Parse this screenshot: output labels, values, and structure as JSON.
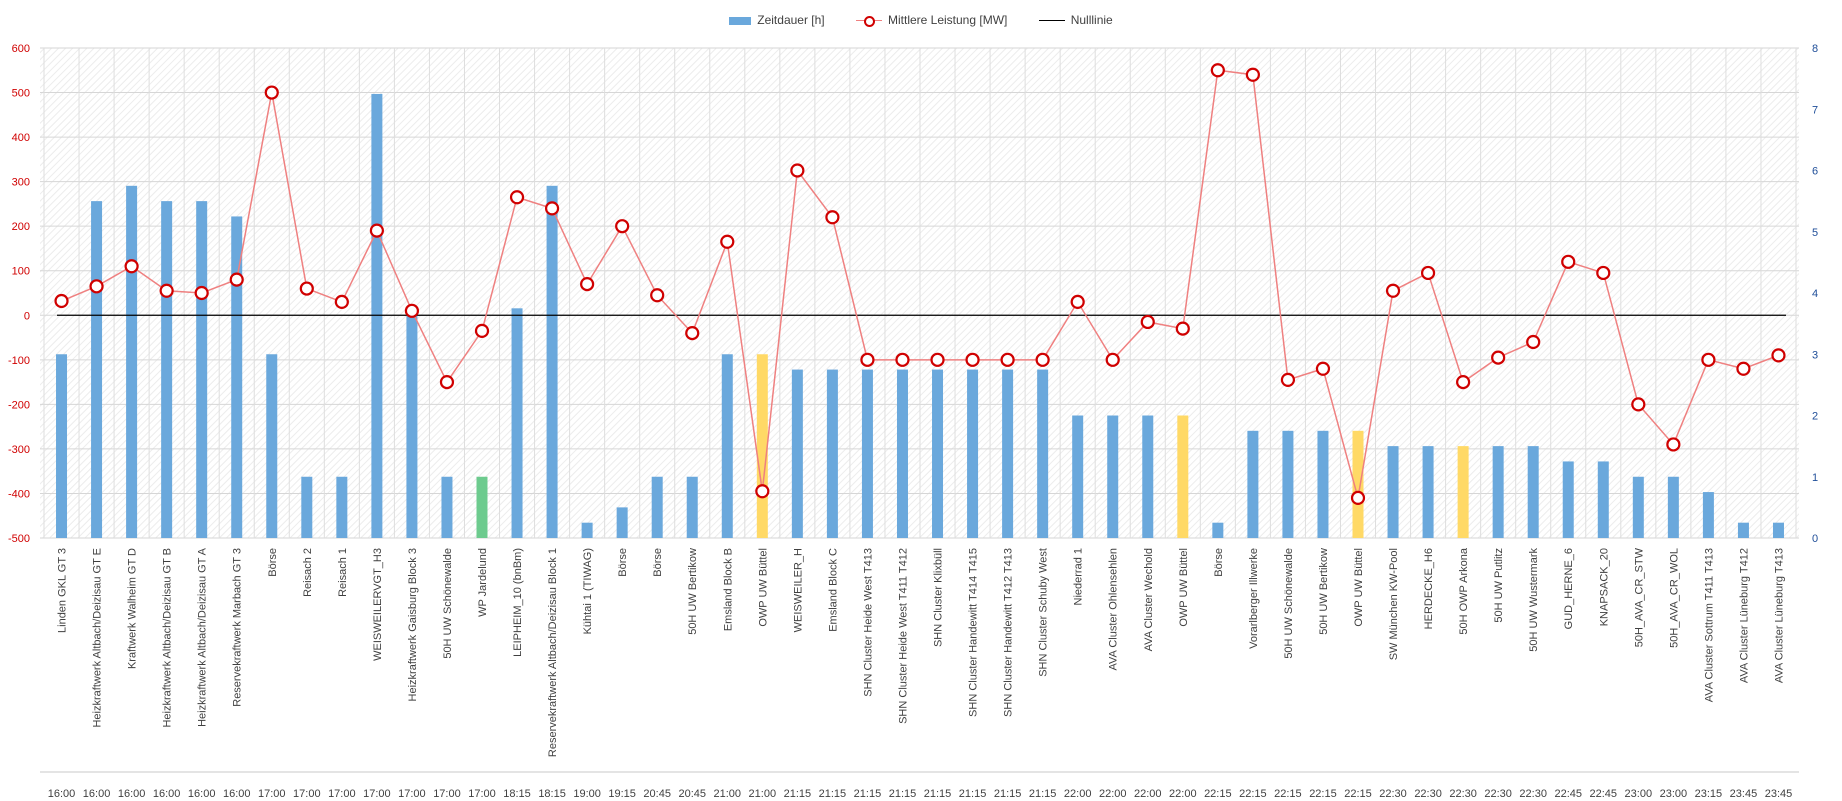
{
  "chart_data": {
    "type": "bar+line",
    "legend": [
      {
        "label": "Zeitdauer [h]",
        "kind": "bar",
        "color": "#6aa8dc"
      },
      {
        "label": "Mittlere Leistung [MW]",
        "kind": "line",
        "color": "#ef8080"
      },
      {
        "label": "Nulllinie",
        "kind": "line",
        "color": "#000000"
      }
    ],
    "y_left": {
      "min": -500,
      "max": 600,
      "ticks": [
        600,
        500,
        400,
        300,
        200,
        100,
        0,
        -100,
        -200,
        -300,
        -400,
        -500
      ],
      "color": "#d00000"
    },
    "y_right": {
      "min": 0,
      "max": 8,
      "ticks": [
        8,
        7,
        6,
        5,
        4,
        3,
        2,
        1,
        0
      ],
      "color": "#1f4e99"
    },
    "categories": [
      {
        "label": "Linden GKL GT 3",
        "time": "16:00"
      },
      {
        "label": "Heizkraftwerk Altbach/Deizisau GT E",
        "time": "16:00"
      },
      {
        "label": "Kraftwerk Walheim GT D",
        "time": "16:00"
      },
      {
        "label": "Heizkraftwerk Altbach/Deizisau GT B",
        "time": "16:00"
      },
      {
        "label": "Heizkraftwerk Altbach/Deizisau GT A",
        "time": "16:00"
      },
      {
        "label": "Reservekraftwerk Marbach GT 3",
        "time": "16:00"
      },
      {
        "label": "Börse",
        "time": "17:00"
      },
      {
        "label": "Reisach 2",
        "time": "17:00"
      },
      {
        "label": "Reisach 1",
        "time": "17:00"
      },
      {
        "label": "WEISWEILERVGT_H3",
        "time": "17:00"
      },
      {
        "label": "Heizkraftwerk Gaisburg Block 3",
        "time": "17:00"
      },
      {
        "label": "50H UW Schönewalde",
        "time": "17:00"
      },
      {
        "label": "WP Jardelund",
        "time": "17:00"
      },
      {
        "label": "LEIPHEIM_10 (bnBm)",
        "time": "18:15"
      },
      {
        "label": "Reservekraftwerk Altbach/Deizisau Block 1",
        "time": "18:15"
      },
      {
        "label": "Kühtai 1 (TIWAG)",
        "time": "19:00"
      },
      {
        "label": "Börse",
        "time": "19:15"
      },
      {
        "label": "Börse",
        "time": "20:45"
      },
      {
        "label": "50H UW Bertikow",
        "time": "20:45"
      },
      {
        "label": "Emsland Block B",
        "time": "21:00"
      },
      {
        "label": "OWP UW Büttel",
        "time": "21:00"
      },
      {
        "label": "WEISWEILER_H",
        "time": "21:15"
      },
      {
        "label": "Emsland Block C",
        "time": "21:15"
      },
      {
        "label": "SHN Cluster Heide West T413",
        "time": "21:15"
      },
      {
        "label": "SHN Cluster Heide West T411 T412",
        "time": "21:15"
      },
      {
        "label": "SHN Cluster Klixbüll",
        "time": "21:15"
      },
      {
        "label": "SHN Cluster Handewitt T414 T415",
        "time": "21:15"
      },
      {
        "label": "SHN Cluster Handewitt T412 T413",
        "time": "21:15"
      },
      {
        "label": "SHN Cluster Schuby West",
        "time": "21:15"
      },
      {
        "label": "Niederrad 1",
        "time": "22:00"
      },
      {
        "label": "AVA Cluster Ohlensehlen",
        "time": "22:00"
      },
      {
        "label": "AVA Cluster Wechold",
        "time": "22:00"
      },
      {
        "label": "OWP UW Büttel",
        "time": "22:00"
      },
      {
        "label": "Börse",
        "time": "22:15"
      },
      {
        "label": "Vorarlberger Illwerke",
        "time": "22:15"
      },
      {
        "label": "50H UW Schönewalde",
        "time": "22:15"
      },
      {
        "label": "50H UW Bertikow",
        "time": "22:15"
      },
      {
        "label": "OWP UW Büttel",
        "time": "22:15"
      },
      {
        "label": "SW München KW-Pool",
        "time": "22:30"
      },
      {
        "label": "HERDECKE_H6",
        "time": "22:30"
      },
      {
        "label": "50H OWP Arkona",
        "time": "22:30"
      },
      {
        "label": "50H UW Putlitz",
        "time": "22:30"
      },
      {
        "label": "50H UW Wustermark",
        "time": "22:30"
      },
      {
        "label": "GUD_HERNE_6",
        "time": "22:45"
      },
      {
        "label": "KNAPSACK_20",
        "time": "22:45"
      },
      {
        "label": "50H_AVA_CR_STW",
        "time": "23:00"
      },
      {
        "label": "50H_AVA_CR_WOL",
        "time": "23:00"
      },
      {
        "label": "AVA Cluster Sottrum T411 T413",
        "time": "23:15"
      },
      {
        "label": "AVA Cluster Lüneburg T412",
        "time": "23:45"
      },
      {
        "label": "AVA Cluster Lüneburg T413",
        "time": "23:45"
      }
    ],
    "zeitdauer_h": [
      3,
      5.5,
      5.75,
      5.5,
      5.5,
      5.25,
      3,
      1,
      1,
      7.25,
      3.75,
      1,
      1,
      3.75,
      5.75,
      0.25,
      0.5,
      1,
      1,
      3,
      3,
      2.75,
      2.75,
      2.75,
      2.75,
      2.75,
      2.75,
      2.75,
      2.75,
      2,
      2,
      2,
      2,
      0.25,
      1.75,
      1.75,
      1.75,
      1.75,
      1.5,
      1.5,
      1.5,
      1.5,
      1.5,
      1.25,
      1.25,
      1,
      1,
      0.75,
      0.25,
      0.25
    ],
    "bar_color_keys": [
      "b",
      "b",
      "b",
      "b",
      "b",
      "b",
      "b",
      "b",
      "b",
      "b",
      "b",
      "b",
      "g",
      "b",
      "b",
      "b",
      "b",
      "b",
      "b",
      "b",
      "y",
      "b",
      "b",
      "b",
      "b",
      "b",
      "b",
      "b",
      "b",
      "b",
      "b",
      "b",
      "y",
      "b",
      "b",
      "b",
      "b",
      "y",
      "b",
      "b",
      "y",
      "b",
      "b",
      "b",
      "b",
      "b",
      "b",
      "b",
      "b",
      "b"
    ],
    "bar_colors": {
      "b": "#6aa8dc",
      "g": "#6dcb8e",
      "y": "#ffd966"
    },
    "mittlere_leistung_mw": [
      32,
      65,
      110,
      55,
      50,
      80,
      500,
      60,
      30,
      190,
      10,
      -150,
      -35,
      265,
      240,
      70,
      200,
      45,
      -40,
      165,
      -395,
      325,
      220,
      -100,
      -100,
      -100,
      -100,
      -100,
      -100,
      30,
      -100,
      -15,
      -30,
      550,
      540,
      -145,
      -120,
      -410,
      55,
      95,
      -150,
      -95,
      -60,
      120,
      95,
      -200,
      -290,
      -100,
      -120,
      -90
    ],
    "nulllinie": 0
  }
}
